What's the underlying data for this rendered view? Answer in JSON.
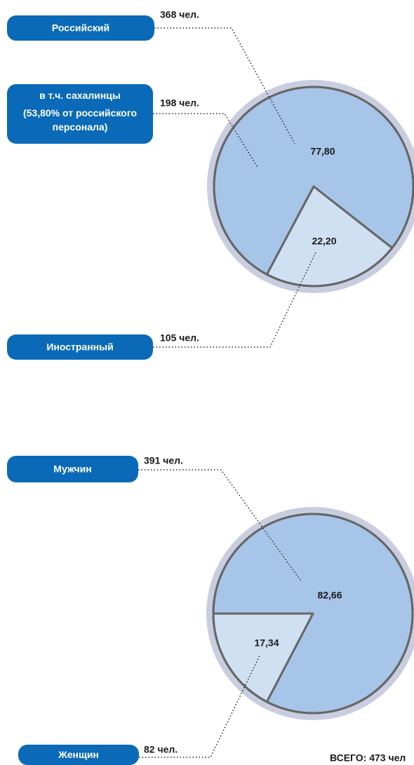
{
  "chart_data": [
    {
      "type": "pie",
      "categories": [
        "Российский",
        "Иностранный"
      ],
      "values": [
        77.8,
        22.2
      ],
      "value_labels": [
        "77,80",
        "22,20"
      ],
      "count_labels": [
        "368 чел.",
        "105 чел."
      ],
      "colors": [
        "#a6c5e8",
        "#cfe0f2"
      ],
      "annotation": {
        "text": [
          "в т.ч. сахалинцы",
          "(53,80% от российского",
          "персонала)"
        ],
        "count": "198 чел."
      }
    },
    {
      "type": "pie",
      "categories": [
        "Мужчин",
        "Женщин"
      ],
      "values": [
        82.66,
        17.34
      ],
      "value_labels": [
        "82,66",
        "17,34"
      ],
      "count_labels": [
        "391 чел.",
        "82 чел."
      ],
      "colors": [
        "#a6c5e8",
        "#cfe0f2"
      ],
      "total": "ВСЕГО: 473 чел"
    }
  ]
}
